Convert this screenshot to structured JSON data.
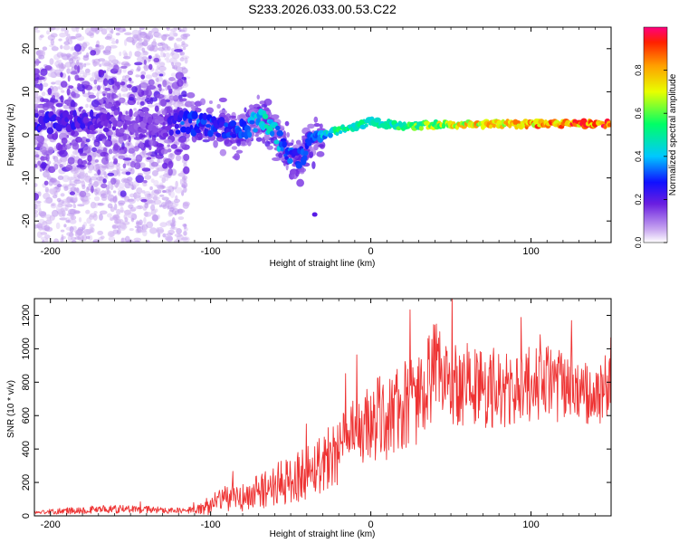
{
  "title": "S233.2026.033.00.53.C22",
  "chart_data": [
    {
      "type": "heatmap",
      "xlabel": "Height of straight line (km)",
      "ylabel": "Frequency (Hz)",
      "xlim": [
        -210,
        150
      ],
      "ylim": [
        -25,
        25
      ],
      "xticks": [
        -200,
        -100,
        0,
        100
      ],
      "yticks": [
        -20,
        -10,
        0,
        10,
        20
      ],
      "colorbar": {
        "label": "Normalized spectral amplitude",
        "range": [
          0,
          1
        ],
        "ticks": [
          "0.0",
          "0.2",
          "0.4",
          "0.6",
          "0.8"
        ]
      },
      "ridge": {
        "x": [
          -190,
          -170,
          -150,
          -130,
          -115,
          -100,
          -85,
          -75,
          -68,
          -60,
          -55,
          -45,
          -38,
          -30,
          -20,
          -10,
          0,
          20,
          50,
          100,
          150
        ],
        "freq": [
          3,
          3,
          3,
          2,
          3,
          2,
          1,
          2,
          4,
          1,
          -3,
          -6,
          -1,
          0,
          1,
          2,
          3,
          2,
          2.5,
          2.5,
          2.5
        ],
        "amplitude": [
          0.25,
          0.2,
          0.15,
          0.15,
          0.35,
          0.3,
          0.3,
          0.4,
          0.45,
          0.45,
          0.35,
          0.3,
          0.35,
          0.4,
          0.55,
          0.5,
          0.5,
          0.55,
          0.75,
          0.85,
          0.9
        ]
      }
    },
    {
      "type": "line",
      "xlabel": "Height of straight line (km)",
      "ylabel": "SNR (10 * v/v)",
      "xlim": [
        -210,
        150
      ],
      "ylim": [
        0,
        1300
      ],
      "xticks": [
        -200,
        -100,
        0,
        100
      ],
      "yticks": [
        0,
        200,
        400,
        600,
        800,
        1000,
        1200
      ],
      "color": "#ee3333",
      "series": [
        {
          "name": "SNR",
          "x": [
            -210,
            -190,
            -170,
            -150,
            -130,
            -115,
            -100,
            -90,
            -80,
            -70,
            -60,
            -50,
            -40,
            -30,
            -20,
            -10,
            0,
            10,
            20,
            30,
            40,
            50,
            60,
            70,
            80,
            90,
            100,
            110,
            120,
            130,
            140,
            150
          ],
          "values": [
            20,
            30,
            40,
            40,
            35,
            30,
            60,
            110,
            100,
            150,
            180,
            210,
            270,
            330,
            400,
            470,
            560,
            600,
            640,
            720,
            860,
            800,
            800,
            760,
            750,
            740,
            790,
            800,
            770,
            740,
            700,
            800
          ],
          "noise": [
            10,
            20,
            25,
            25,
            20,
            15,
            60,
            90,
            90,
            110,
            130,
            150,
            170,
            190,
            210,
            230,
            250,
            270,
            280,
            290,
            300,
            280,
            260,
            250,
            240,
            230,
            230,
            230,
            220,
            200,
            190,
            200
          ]
        }
      ]
    }
  ]
}
